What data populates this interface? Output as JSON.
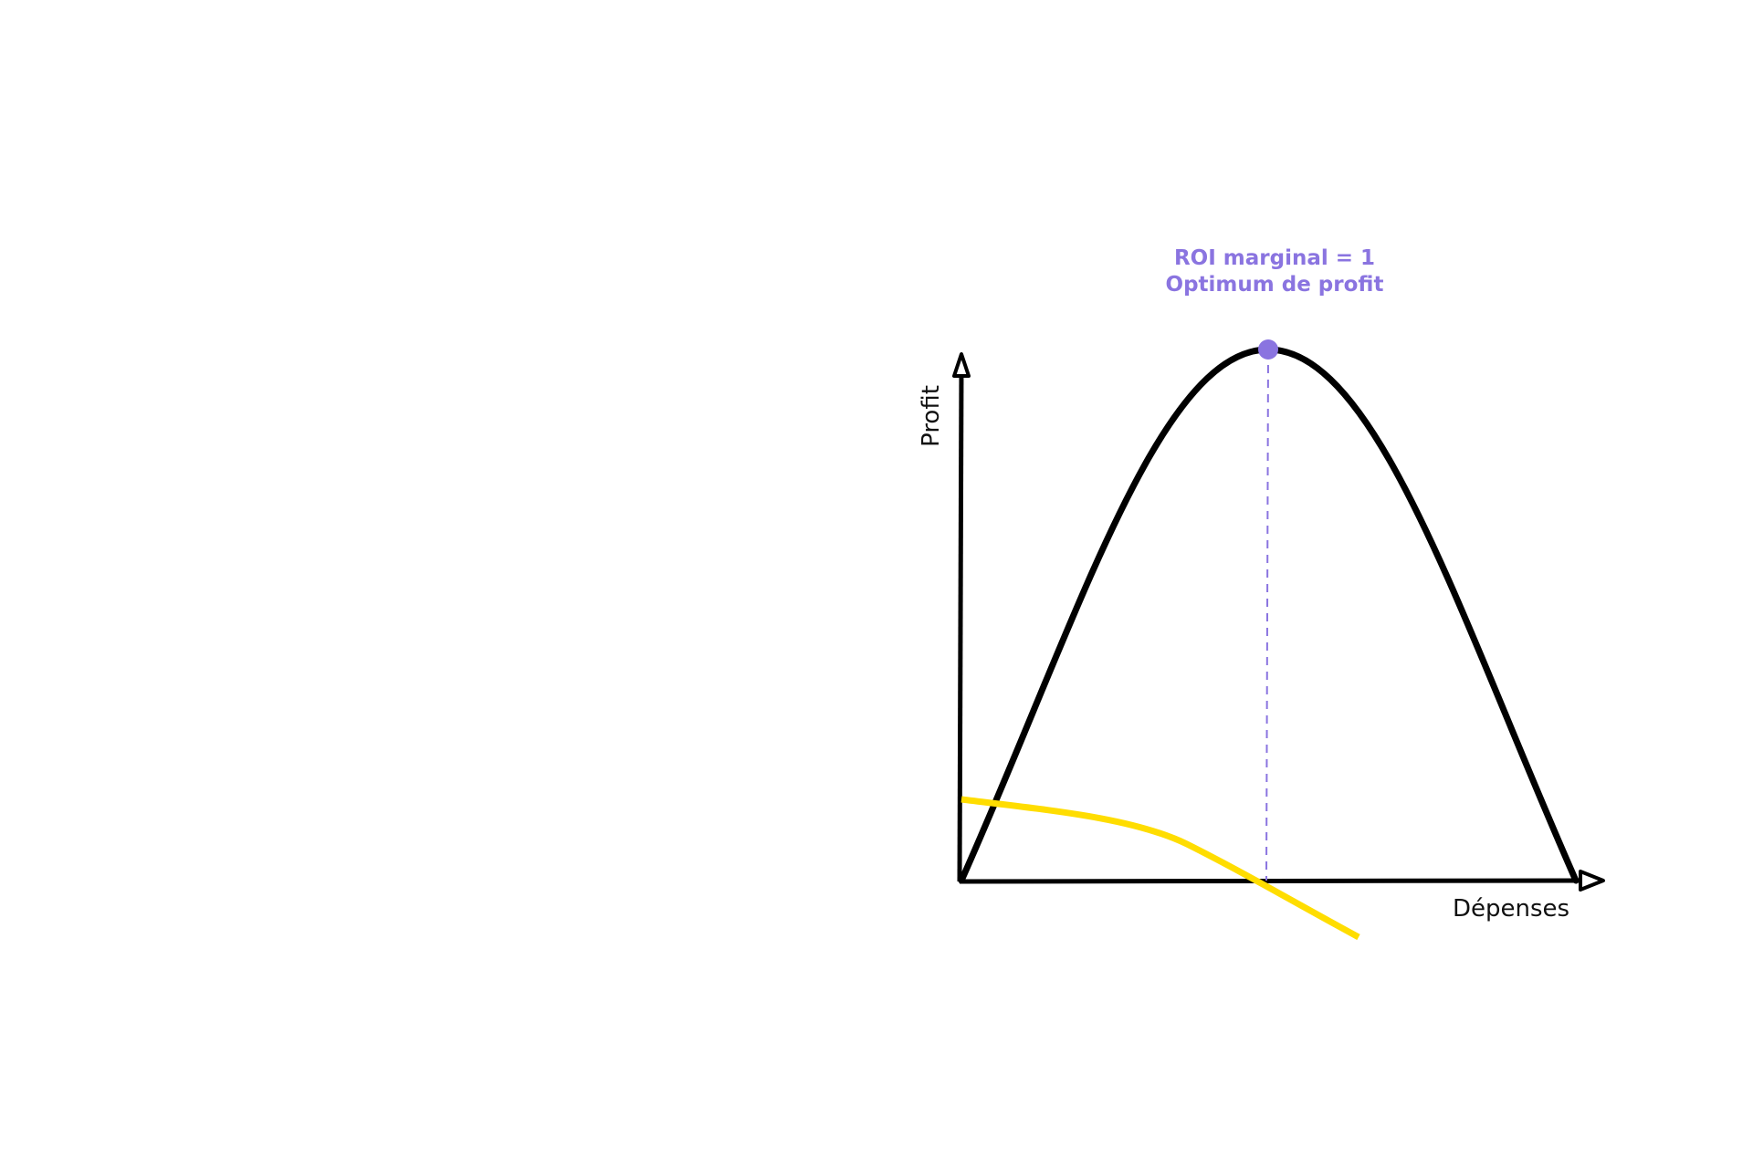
{
  "diagram": {
    "annotation": [
      "ROI marginal = 1",
      "Optimum de profit"
    ],
    "y_axis_label": "Profit",
    "x_axis_label": "Dépenses"
  }
}
